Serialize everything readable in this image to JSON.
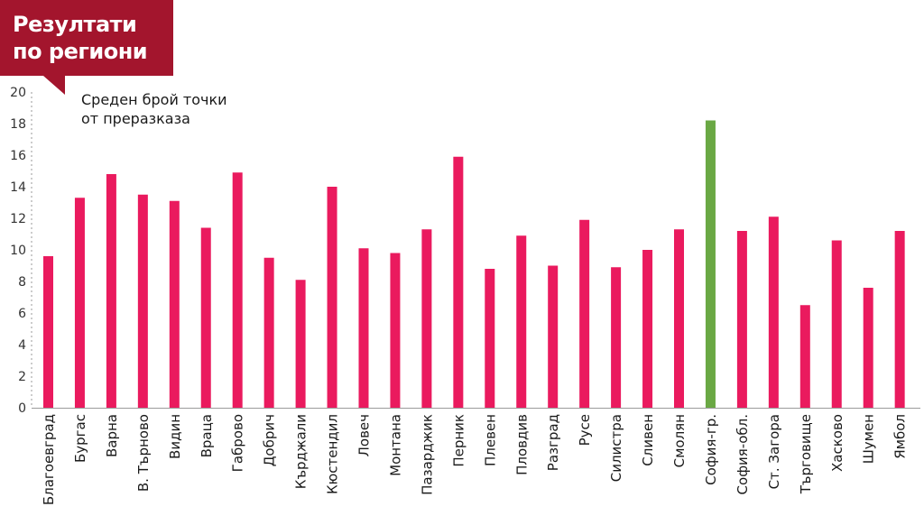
{
  "header": {
    "title_line1": "Резултати",
    "title_line2": "по региони",
    "badge_color": "#a3152d"
  },
  "chart_data": {
    "type": "bar",
    "title": "Резултати по региони",
    "ylabel_line1": "Среден брой точки",
    "ylabel_line2": "от преразказа",
    "ylim": [
      0,
      20
    ],
    "yticks": [
      0,
      2,
      4,
      6,
      8,
      10,
      12,
      14,
      16,
      18,
      20
    ],
    "grid": false,
    "bar_color": "#ea1a5e",
    "highlight_color": "#6aa844",
    "highlight_category": "София-гр.",
    "categories": [
      "Благоевград",
      "Бургас",
      "Варна",
      "В. Търново",
      "Видин",
      "Враца",
      "Габрово",
      "Добрич",
      "Кърджали",
      "Кюстендил",
      "Ловеч",
      "Монтана",
      "Пазарджик",
      "Перник",
      "Плевен",
      "Пловдив",
      "Разград",
      "Русе",
      "Силистра",
      "Сливен",
      "Смолян",
      "София-гр.",
      "София-обл.",
      "Ст. Загора",
      "Търговище",
      "Хасково",
      "Шумен",
      "Ямбол"
    ],
    "values": [
      9.6,
      13.3,
      14.8,
      13.5,
      13.1,
      11.4,
      14.9,
      9.5,
      8.1,
      14.0,
      10.1,
      9.8,
      11.3,
      15.9,
      8.8,
      10.9,
      9.0,
      11.9,
      8.9,
      10.0,
      11.3,
      18.2,
      11.2,
      12.1,
      6.5,
      10.6,
      7.6,
      11.2
    ]
  }
}
